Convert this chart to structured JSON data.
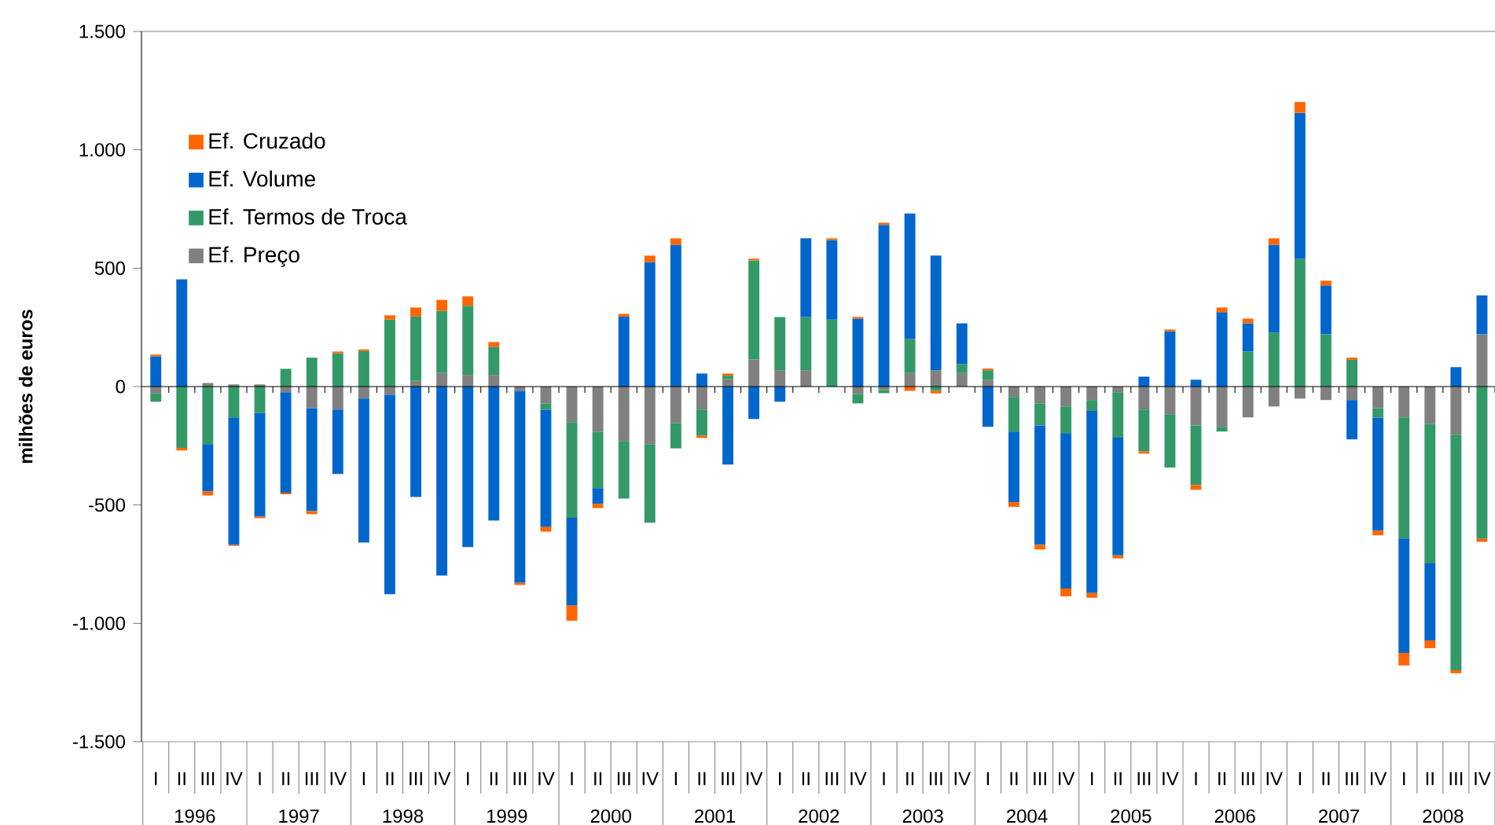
{
  "chart_data": {
    "type": "bar",
    "stacked": true,
    "ylabel": "milhões de euros",
    "categories": [
      "I",
      "II",
      "III",
      "IV",
      "I",
      "II",
      "III",
      "IV",
      "I",
      "II",
      "III",
      "IV",
      "I",
      "II",
      "III",
      "IV",
      "I",
      "II",
      "III",
      "IV",
      "I",
      "II",
      "III",
      "IV",
      "I",
      "II",
      "III",
      "IV",
      "I",
      "II",
      "III",
      "IV",
      "I",
      "II",
      "III",
      "IV",
      "I",
      "II",
      "III",
      "IV",
      "I",
      "II",
      "III",
      "IV",
      "I",
      "II",
      "III",
      "IV",
      "I",
      "II",
      "III",
      "IV"
    ],
    "series": [
      {
        "name": "Ef. Preço",
        "color": "#808080",
        "values": [
          -29,
          null,
          15,
          9,
          9,
          -24,
          -91,
          -97,
          -51,
          -35,
          24,
          57,
          49,
          49,
          -18,
          -71,
          -150,
          -190,
          -230,
          -243,
          -155,
          -97,
          31,
          115,
          69,
          69,
          null,
          -31,
          -15,
          57,
          69,
          57,
          29,
          -44,
          -71,
          -84,
          -57,
          -24,
          -97,
          -117,
          -164,
          -172,
          -130,
          -84,
          -51,
          -57,
          -57,
          -91,
          -130,
          -157,
          -203,
          221
        ]
      },
      {
        "name": "Ef. Termos de Troca",
        "color": "#339966",
        "values": [
          -35,
          -259,
          -243,
          -130,
          -111,
          75,
          122,
          141,
          150,
          283,
          272,
          263,
          292,
          119,
          null,
          -27,
          -404,
          -239,
          -243,
          -332,
          -106,
          -111,
          15,
          418,
          225,
          225,
          283,
          -40,
          -13,
          144,
          -18,
          38,
          40,
          -146,
          -93,
          -113,
          -46,
          -192,
          -177,
          -225,
          -252,
          -18,
          148,
          228,
          539,
          221,
          113,
          -40,
          -511,
          -590,
          -995,
          -643
        ]
      },
      {
        "name": "Ef. Volume",
        "color": "#0066cc",
        "values": [
          128,
          453,
          -199,
          -539,
          -438,
          -424,
          -435,
          -272,
          -608,
          -842,
          -466,
          -798,
          -678,
          -566,
          -811,
          -495,
          -371,
          -66,
          296,
          526,
          599,
          55,
          -329,
          -137,
          -64,
          332,
          336,
          287,
          683,
          530,
          484,
          172,
          -170,
          -298,
          -504,
          -656,
          -769,
          -497,
          42,
          234,
          29,
          314,
          119,
          371,
          617,
          206,
          -166,
          -477,
          -484,
          -325,
          82,
          164
        ]
      },
      {
        "name": "Ef. Cruzado",
        "color": "#ff6600",
        "values": [
          7,
          -11,
          -18,
          -4,
          -7,
          -7,
          -13,
          7,
          7,
          18,
          38,
          46,
          40,
          20,
          -9,
          -20,
          -64,
          -18,
          11,
          27,
          27,
          -9,
          9,
          7,
          null,
          null,
          7,
          7,
          9,
          -18,
          -11,
          null,
          7,
          -20,
          -20,
          -33,
          -20,
          -13,
          -9,
          7,
          -20,
          20,
          20,
          27,
          46,
          20,
          9,
          -20,
          -53,
          -33,
          -13,
          -13
        ]
      }
    ],
    "ylim": [
      -1500,
      1500
    ],
    "yticks": [
      {
        "value": -1500,
        "label": "-1.500"
      },
      {
        "value": -1000,
        "label": "-1.000"
      },
      -500,
      0,
      500,
      {
        "value": 1000,
        "label": "1.000"
      },
      {
        "value": 1500,
        "label": "1.500"
      }
    ],
    "legend": "top left",
    "annotations": [
      "1996",
      "1997",
      "1998",
      "1999",
      "2000",
      "2001",
      "2002",
      "2003",
      "2004",
      "2005",
      "2006",
      "2007",
      "2008"
    ]
  }
}
